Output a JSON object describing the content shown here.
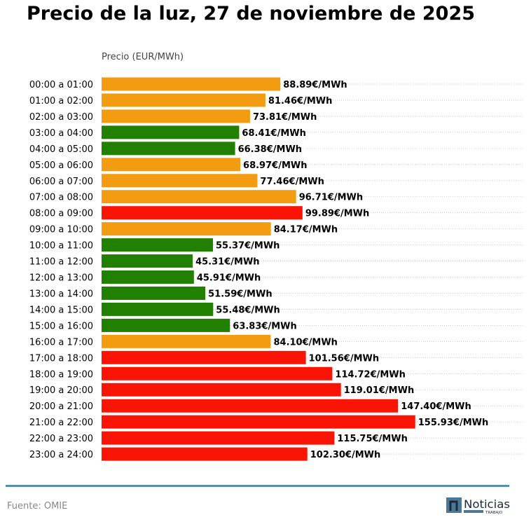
{
  "chart_data": {
    "type": "bar",
    "orientation": "horizontal",
    "title": "Precio de la luz, 27 de noviembre de 2025",
    "xlabel": "Precio (EUR/MWh)",
    "xlim": [
      0,
      210
    ],
    "grid": "horizontal dotted",
    "label_suffix": "€/MWh",
    "categories": [
      "00:00 a 01:00",
      "01:00 a 02:00",
      "02:00 a 03:00",
      "03:00 a 04:00",
      "04:00 a 05:00",
      "05:00 a 06:00",
      "06:00 a 07:00",
      "07:00 a 08:00",
      "08:00 a 09:00",
      "09:00 a 10:00",
      "10:00 a 11:00",
      "11:00 a 12:00",
      "12:00 a 13:00",
      "13:00 a 14:00",
      "14:00 a 15:00",
      "15:00 a 16:00",
      "16:00 a 17:00",
      "17:00 a 18:00",
      "18:00 a 19:00",
      "19:00 a 20:00",
      "20:00 a 21:00",
      "21:00 a 22:00",
      "22:00 a 23:00",
      "23:00 a 24:00"
    ],
    "values": [
      88.89,
      81.46,
      73.81,
      68.41,
      66.38,
      68.97,
      77.46,
      96.71,
      99.89,
      84.17,
      55.37,
      45.31,
      45.91,
      51.59,
      55.48,
      63.83,
      84.1,
      101.56,
      114.72,
      119.01,
      147.4,
      155.93,
      115.75,
      102.3
    ],
    "levels": [
      "mid",
      "mid",
      "mid",
      "low",
      "low",
      "mid",
      "mid",
      "mid",
      "high",
      "mid",
      "low",
      "low",
      "low",
      "low",
      "low",
      "low",
      "mid",
      "high",
      "high",
      "high",
      "high",
      "high",
      "high",
      "high"
    ],
    "colors": {
      "low": "#228000",
      "mid": "#f39c12",
      "high": "#fa1405"
    }
  },
  "footer": {
    "source": "Fuente: OMIE"
  },
  "logo": {
    "text": "Noticias",
    "subtext": "TRABAJO",
    "color": "#4a7896"
  }
}
